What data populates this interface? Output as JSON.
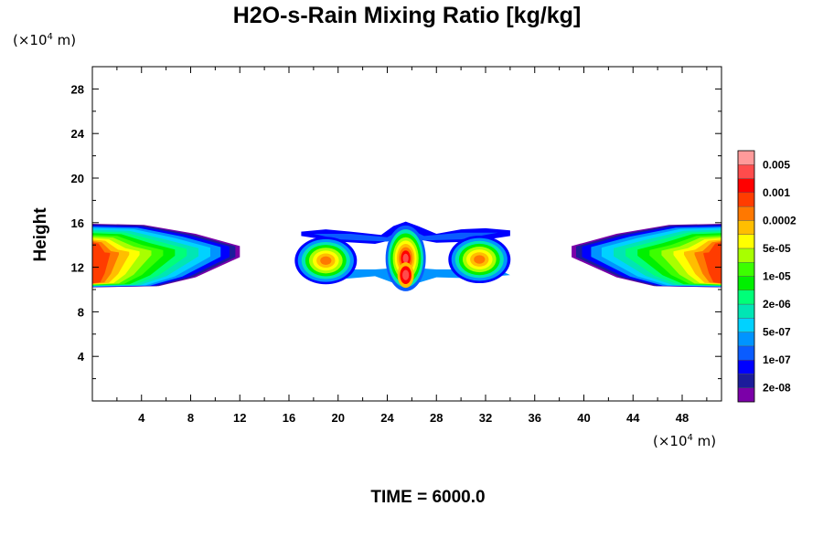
{
  "chart_data": {
    "type": "heatmap",
    "title": "H2O-s-Rain Mixing Ratio [kg/kg]",
    "ylabel": "Height",
    "x_unit_prefix": "(×10",
    "x_unit_exp": "4",
    "x_unit_suffix": " m)",
    "y_unit_prefix": "(×10",
    "y_unit_exp": "4",
    "y_unit_suffix": " m)",
    "xlim": [
      0,
      51.2
    ],
    "ylim": [
      0,
      30
    ],
    "x_ticks": [
      4,
      8,
      12,
      16,
      20,
      24,
      28,
      32,
      36,
      40,
      44,
      48
    ],
    "y_ticks": [
      4,
      8,
      12,
      16,
      20,
      24,
      28
    ],
    "time_label": "TIME = 6000.0",
    "legend_colors": [
      "#7b00a8",
      "#1c1c9b",
      "#0000ff",
      "#0a5cff",
      "#0094ff",
      "#00d2ff",
      "#00e6b4",
      "#00ff78",
      "#00f000",
      "#3cff00",
      "#a8ff00",
      "#ffff00",
      "#ffbe00",
      "#ff7800",
      "#ff3c00",
      "#ff0000",
      "#ff4c4c",
      "#ff9a9a"
    ],
    "legend_labels": [
      "2e-08",
      "1e-07",
      "5e-07",
      "2e-06",
      "1e-05",
      "5e-05",
      "0.0002",
      "0.001",
      "0.005"
    ],
    "features": [
      {
        "name": "left-anvil",
        "x": [
          0,
          12
        ],
        "y": [
          10,
          16
        ]
      },
      {
        "name": "center-cloud",
        "x": [
          17,
          34
        ],
        "y": [
          10,
          16
        ]
      },
      {
        "name": "right-anvil",
        "x": [
          39,
          51.2
        ],
        "y": [
          10,
          16
        ]
      }
    ]
  }
}
